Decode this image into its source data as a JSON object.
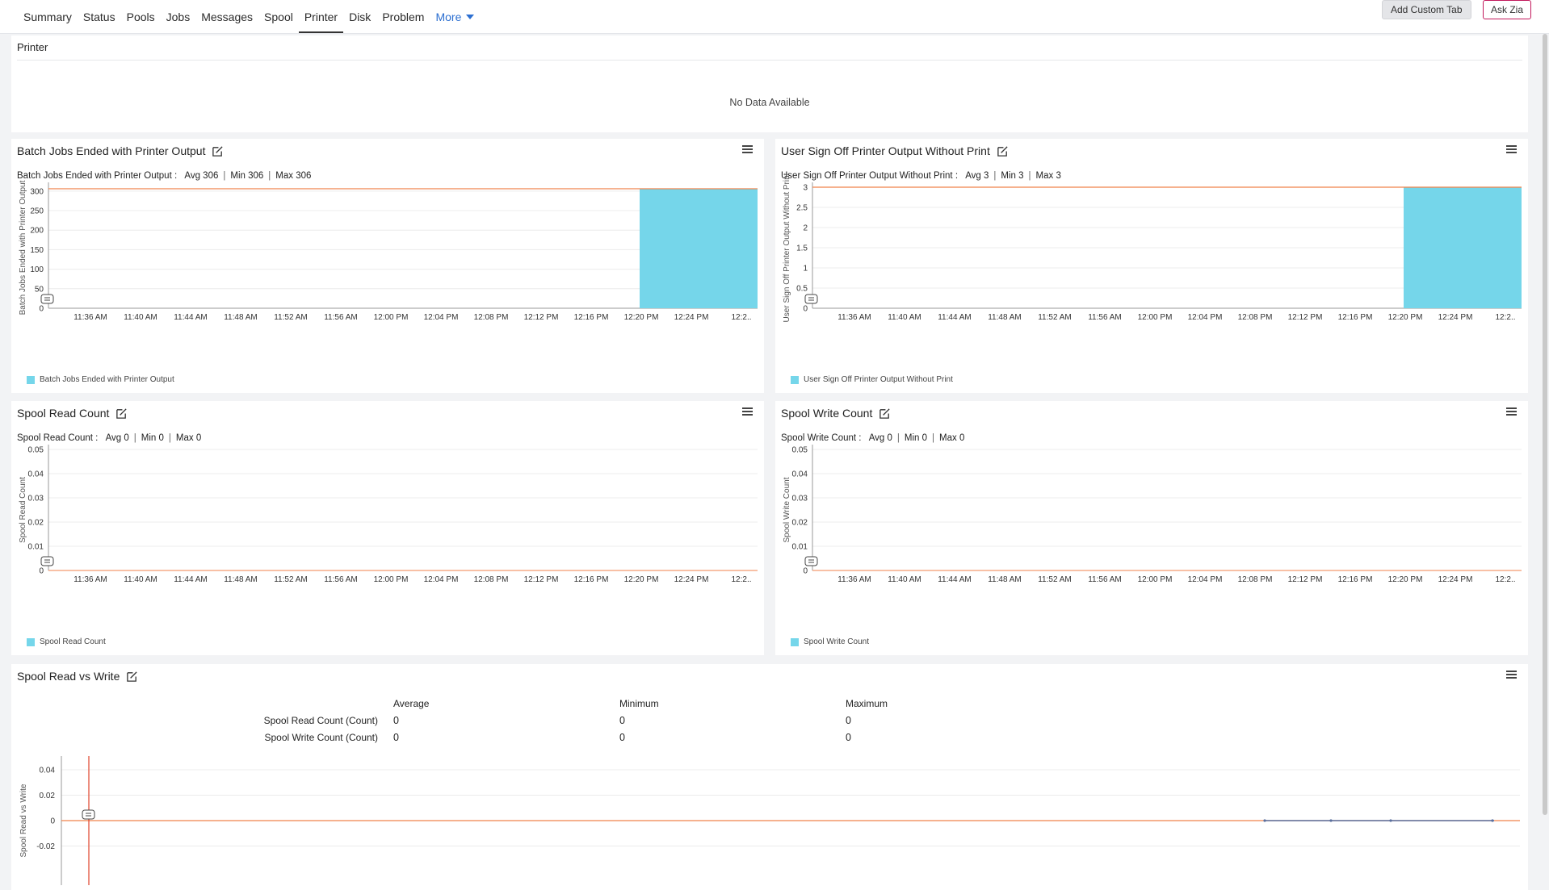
{
  "tabs": [
    {
      "label": "Summary"
    },
    {
      "label": "Status"
    },
    {
      "label": "Pools"
    },
    {
      "label": "Jobs"
    },
    {
      "label": "Messages"
    },
    {
      "label": "Spool"
    },
    {
      "label": "Printer"
    },
    {
      "label": "Disk"
    },
    {
      "label": "Problem"
    }
  ],
  "more_label": "More",
  "active_tab": "Printer",
  "buttons": {
    "add_custom_tab": "Add Custom Tab",
    "ask_zia": "Ask Zia"
  },
  "printer_panel": {
    "title": "Printer",
    "empty": "No Data Available"
  },
  "colors": {
    "bar_fill": "#75d6ea",
    "max_line": "#f0824b",
    "axis": "#999999",
    "grid": "#ececec"
  },
  "x_ticks": [
    "11:36 AM",
    "11:40 AM",
    "11:44 AM",
    "11:48 AM",
    "11:52 AM",
    "11:56 AM",
    "12:00 PM",
    "12:04 PM",
    "12:08 PM",
    "12:12 PM",
    "12:16 PM",
    "12:20 PM",
    "12:24 PM",
    "12:2.."
  ],
  "chart_data": [
    {
      "type": "area",
      "title": "Batch Jobs Ended with Printer Output",
      "summary": {
        "label": "Batch Jobs Ended with Printer Output :",
        "avg": "Avg 306",
        "min": "Min 306",
        "max": "Max 306"
      },
      "ylabel": "Batch Jobs Ended with Printer Output",
      "yticks": [
        "300",
        "250",
        "200",
        "150",
        "100",
        "50",
        "0"
      ],
      "ylim": [
        0,
        310
      ],
      "series": [
        {
          "name": "Batch Jobs Ended with Printer Output",
          "x": [
            "12:20 PM",
            "12:24 PM",
            "12:2.."
          ],
          "values": [
            306,
            306,
            306
          ]
        }
      ],
      "legend": "bottom-left"
    },
    {
      "type": "area",
      "title": "User Sign Off Printer Output Without Print",
      "summary": {
        "label": "User Sign Off Printer Output Without Print :",
        "avg": "Avg 3",
        "min": "Min 3",
        "max": "Max 3"
      },
      "ylabel": "User Sign Off Printer Output Without Print",
      "yticks": [
        "3",
        "2.5",
        "2",
        "1.5",
        "1",
        "0.5",
        "0"
      ],
      "ylim": [
        0,
        3
      ],
      "series": [
        {
          "name": "User Sign Off Printer Output Without Print",
          "x": [
            "12:20 PM",
            "12:24 PM",
            "12:2.."
          ],
          "values": [
            3,
            3,
            3
          ]
        }
      ],
      "legend": "bottom-left"
    },
    {
      "type": "line",
      "title": "Spool Read Count",
      "summary": {
        "label": "Spool Read Count :",
        "avg": "Avg 0",
        "min": "Min 0",
        "max": "Max 0"
      },
      "ylabel": "Spool Read Count",
      "yticks": [
        "0.05",
        "0.04",
        "0.03",
        "0.02",
        "0.01",
        "0"
      ],
      "ylim": [
        0,
        0.05
      ],
      "series": [
        {
          "name": "Spool Read Count",
          "values": [
            0
          ]
        }
      ],
      "legend": "bottom-left"
    },
    {
      "type": "line",
      "title": "Spool Write Count",
      "summary": {
        "label": "Spool Write Count :",
        "avg": "Avg 0",
        "min": "Min 0",
        "max": "Max 0"
      },
      "ylabel": "Spool Write Count",
      "yticks": [
        "0.05",
        "0.04",
        "0.03",
        "0.02",
        "0.01",
        "0"
      ],
      "ylim": [
        0,
        0.05
      ],
      "series": [
        {
          "name": "Spool Write Count",
          "values": [
            0
          ]
        }
      ],
      "legend": "bottom-left"
    },
    {
      "type": "line",
      "title": "Spool Read vs Write",
      "ylabel": "Spool Read vs Write",
      "yticks": [
        "0.04",
        "0.02",
        "0",
        "-0.02"
      ],
      "ylim": [
        -0.02,
        0.04
      ],
      "table": {
        "headers": [
          "",
          "Average",
          "Minimum",
          "Maximum"
        ],
        "rows": [
          {
            "label": "Spool Read Count (Count)",
            "avg": "0",
            "min": "0",
            "max": "0"
          },
          {
            "label": "Spool Write Count (Count)",
            "avg": "0",
            "min": "0",
            "max": "0"
          }
        ]
      }
    }
  ]
}
